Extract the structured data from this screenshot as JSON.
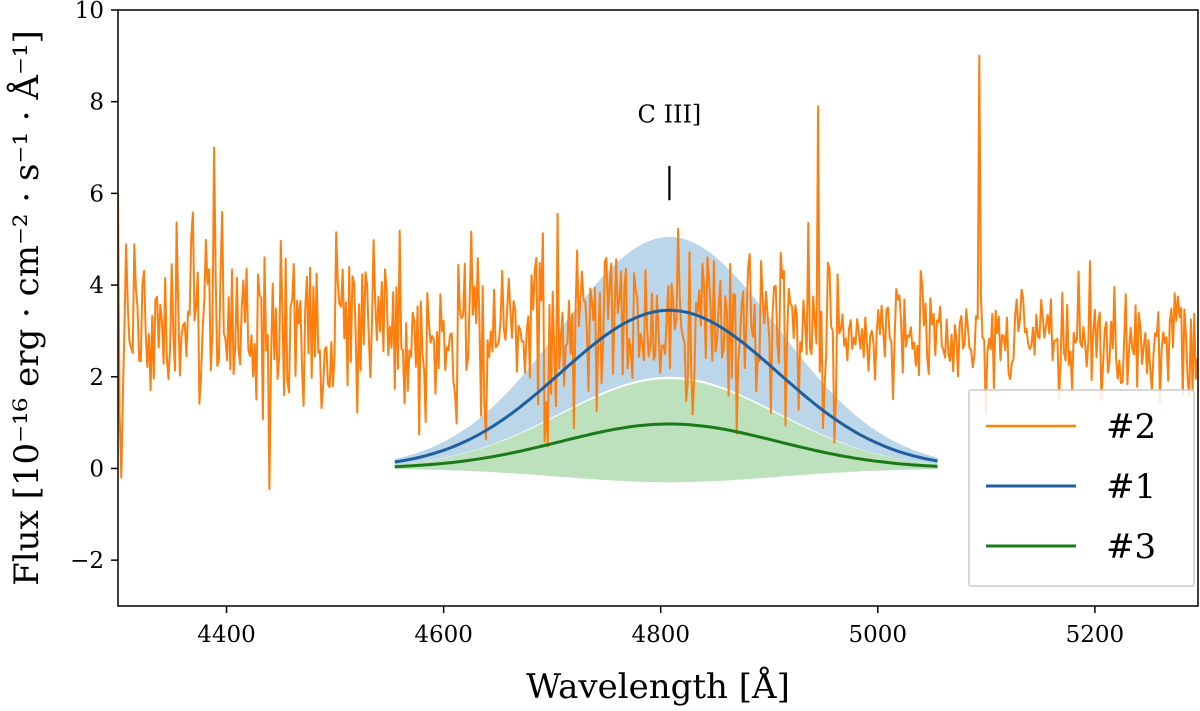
{
  "chart_data": {
    "type": "line",
    "title": "",
    "xlabel": "Wavelength [Å]",
    "ylabel": "Flux [10⁻¹⁶ erg · cm⁻² · s⁻¹ · Å⁻¹]",
    "xlim": [
      4300,
      5295
    ],
    "ylim": [
      -3,
      10
    ],
    "xticks": [
      4400,
      4600,
      4800,
      5000,
      5200
    ],
    "xtick_labels": [
      "4400",
      "4600",
      "4800",
      "5000",
      "5200"
    ],
    "yticks": [
      -2,
      0,
      2,
      4,
      6,
      8,
      10
    ],
    "ytick_labels": [
      "−2",
      "0",
      "2",
      "4",
      "6",
      "8",
      "10"
    ],
    "grid": false,
    "legend_position": "bottom-right",
    "annotations": [
      {
        "text": "C III]",
        "x": 4808,
        "y": 6.2,
        "marker": "vertical-tick"
      }
    ],
    "series": [
      {
        "name": "#2",
        "color": "#ff7f0e",
        "kind": "noisy-spectrum",
        "x_range": [
          4300,
          5295
        ],
        "baseline_mean": 3.0,
        "noise_sigma": 1.0,
        "spikes": [
          {
            "x": 4300,
            "y": 6.0
          },
          {
            "x": 4303,
            "y": -0.2
          },
          {
            "x": 4388,
            "y": 7.0
          },
          {
            "x": 4440,
            "y": -0.45
          },
          {
            "x": 4945,
            "y": 7.9
          },
          {
            "x": 5094,
            "y": 9.0
          }
        ]
      },
      {
        "name": "#1",
        "color": "#1f5f9f",
        "kind": "gaussian",
        "x_range": [
          4555,
          5055
        ],
        "center": 4808,
        "sigma": 100,
        "amplitude": 3.45,
        "band": {
          "upper_amplitude": 5.05,
          "lower_amplitude": 2.0,
          "fill": "#9ec4e0"
        }
      },
      {
        "name": "#3",
        "color": "#1a7a1a",
        "kind": "gaussian",
        "x_range": [
          4555,
          5055
        ],
        "center": 4808,
        "sigma": 100,
        "amplitude": 0.97,
        "band": {
          "upper_amplitude": 1.95,
          "lower_amplitude": -0.3,
          "fill": "#9fd49f"
        }
      }
    ]
  }
}
